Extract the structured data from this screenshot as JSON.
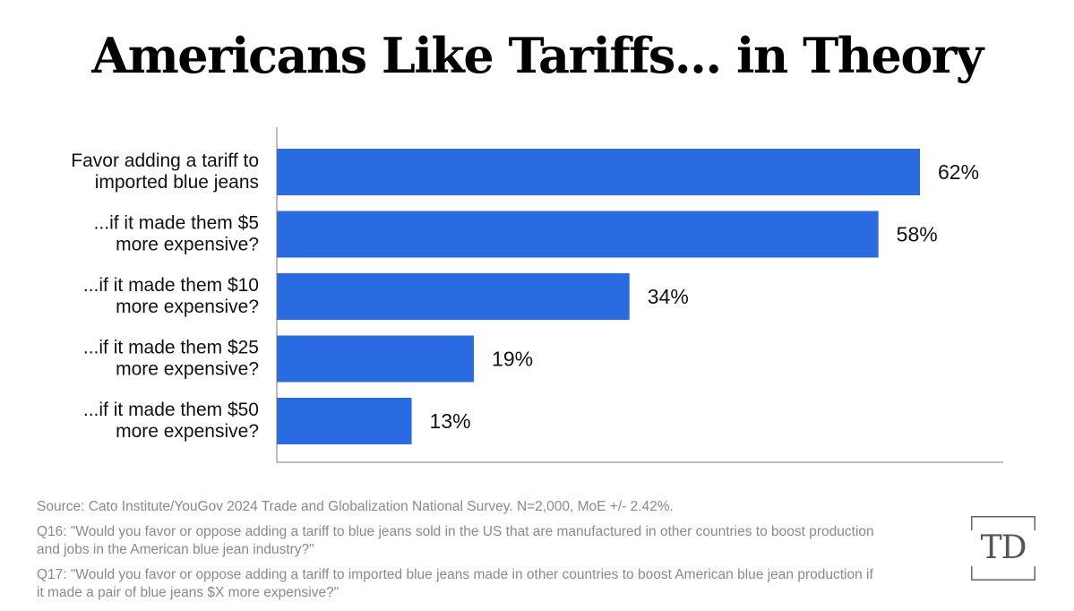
{
  "chart_data": {
    "type": "bar",
    "orientation": "horizontal",
    "title": "Americans Like Tariffs... in Theory",
    "categories": [
      [
        "Favor adding a tariff to",
        "imported blue jeans"
      ],
      [
        "...if it made them $5",
        "more expensive?"
      ],
      [
        "...if it made them $10",
        "more expensive?"
      ],
      [
        "...if it made them $25",
        "more expensive?"
      ],
      [
        "...if it made them $50",
        "more expensive?"
      ]
    ],
    "values": [
      62,
      58,
      34,
      19,
      13
    ],
    "value_labels": [
      "62%",
      "58%",
      "34%",
      "19%",
      "13%"
    ],
    "unit": "%",
    "xlim": [
      0,
      70
    ],
    "bar_color": "#2a6be1",
    "axis_color": "#777777",
    "grid": false,
    "legend": "none"
  },
  "footer": {
    "source": "Source: Cato Institute/YouGov 2024 Trade and Globalization National Survey. N=2,000, MoE +/- 2.42%.",
    "q16": "Q16: \"Would you favor or oppose adding a tariff to blue jeans sold in the US that are manufactured in other countries to boost production and jobs in the American blue jean industry?\"",
    "q17": "Q17: \"Would you favor or oppose adding a tariff to imported blue jeans made in other countries to boost American blue jean production if it made a pair of blue jeans $X more expensive?\""
  },
  "logo": {
    "text": "TD",
    "color": "#666666"
  }
}
